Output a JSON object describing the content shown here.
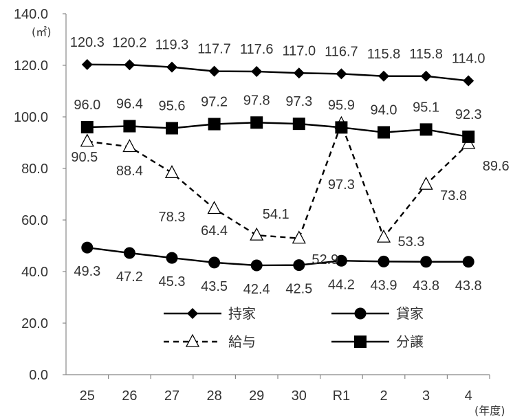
{
  "chart_data": {
    "type": "line",
    "categories": [
      "25",
      "26",
      "27",
      "28",
      "29",
      "30",
      "R1",
      "2",
      "3",
      "4"
    ],
    "y_unit": "(㎡)",
    "x_unit": "(年度)",
    "ylim": [
      0,
      140
    ],
    "yticks": [
      "0.0",
      "20.0",
      "40.0",
      "60.0",
      "80.0",
      "100.0",
      "120.0",
      "140.0"
    ],
    "grid": false,
    "legend_position": "lower-center",
    "series": [
      {
        "name": "持家",
        "marker": "diamond",
        "dash": "solid",
        "color": "#000000",
        "values": [
          120.3,
          120.2,
          119.3,
          117.7,
          117.6,
          117.0,
          116.7,
          115.8,
          115.8,
          114.0
        ]
      },
      {
        "name": "貸家",
        "marker": "circle",
        "dash": "solid",
        "color": "#000000",
        "values": [
          49.3,
          47.2,
          45.3,
          43.5,
          42.4,
          42.5,
          44.2,
          43.9,
          43.8,
          43.8
        ]
      },
      {
        "name": "給与",
        "marker": "triangle-open",
        "dash": "dashed",
        "color": "#000000",
        "values": [
          90.5,
          88.4,
          78.3,
          64.4,
          54.1,
          52.9,
          97.3,
          53.3,
          73.8,
          89.6
        ]
      },
      {
        "name": "分譲",
        "marker": "square",
        "dash": "solid",
        "color": "#000000",
        "values": [
          96.0,
          96.4,
          95.6,
          97.2,
          97.8,
          97.3,
          95.9,
          94.0,
          95.1,
          92.3
        ]
      }
    ],
    "data_labels": [
      [
        "120.3",
        "120.2",
        "119.3",
        "117.7",
        "117.6",
        "117.0",
        "116.7",
        "115.8",
        "115.8",
        "114.0"
      ],
      [
        "49.3",
        "47.2",
        "45.3",
        "43.5",
        "42.4",
        "42.5",
        "44.2",
        "43.9",
        "43.8",
        "43.8"
      ],
      [
        "90.5",
        "88.4",
        "78.3",
        "64.4",
        "54.1",
        "52.9",
        "97.3",
        "53.3",
        "73.8",
        "89.6"
      ],
      [
        "96.0",
        "96.4",
        "95.6",
        "97.2",
        "97.8",
        "97.3",
        "95.9",
        "94.0",
        "95.1",
        "92.3"
      ]
    ]
  }
}
